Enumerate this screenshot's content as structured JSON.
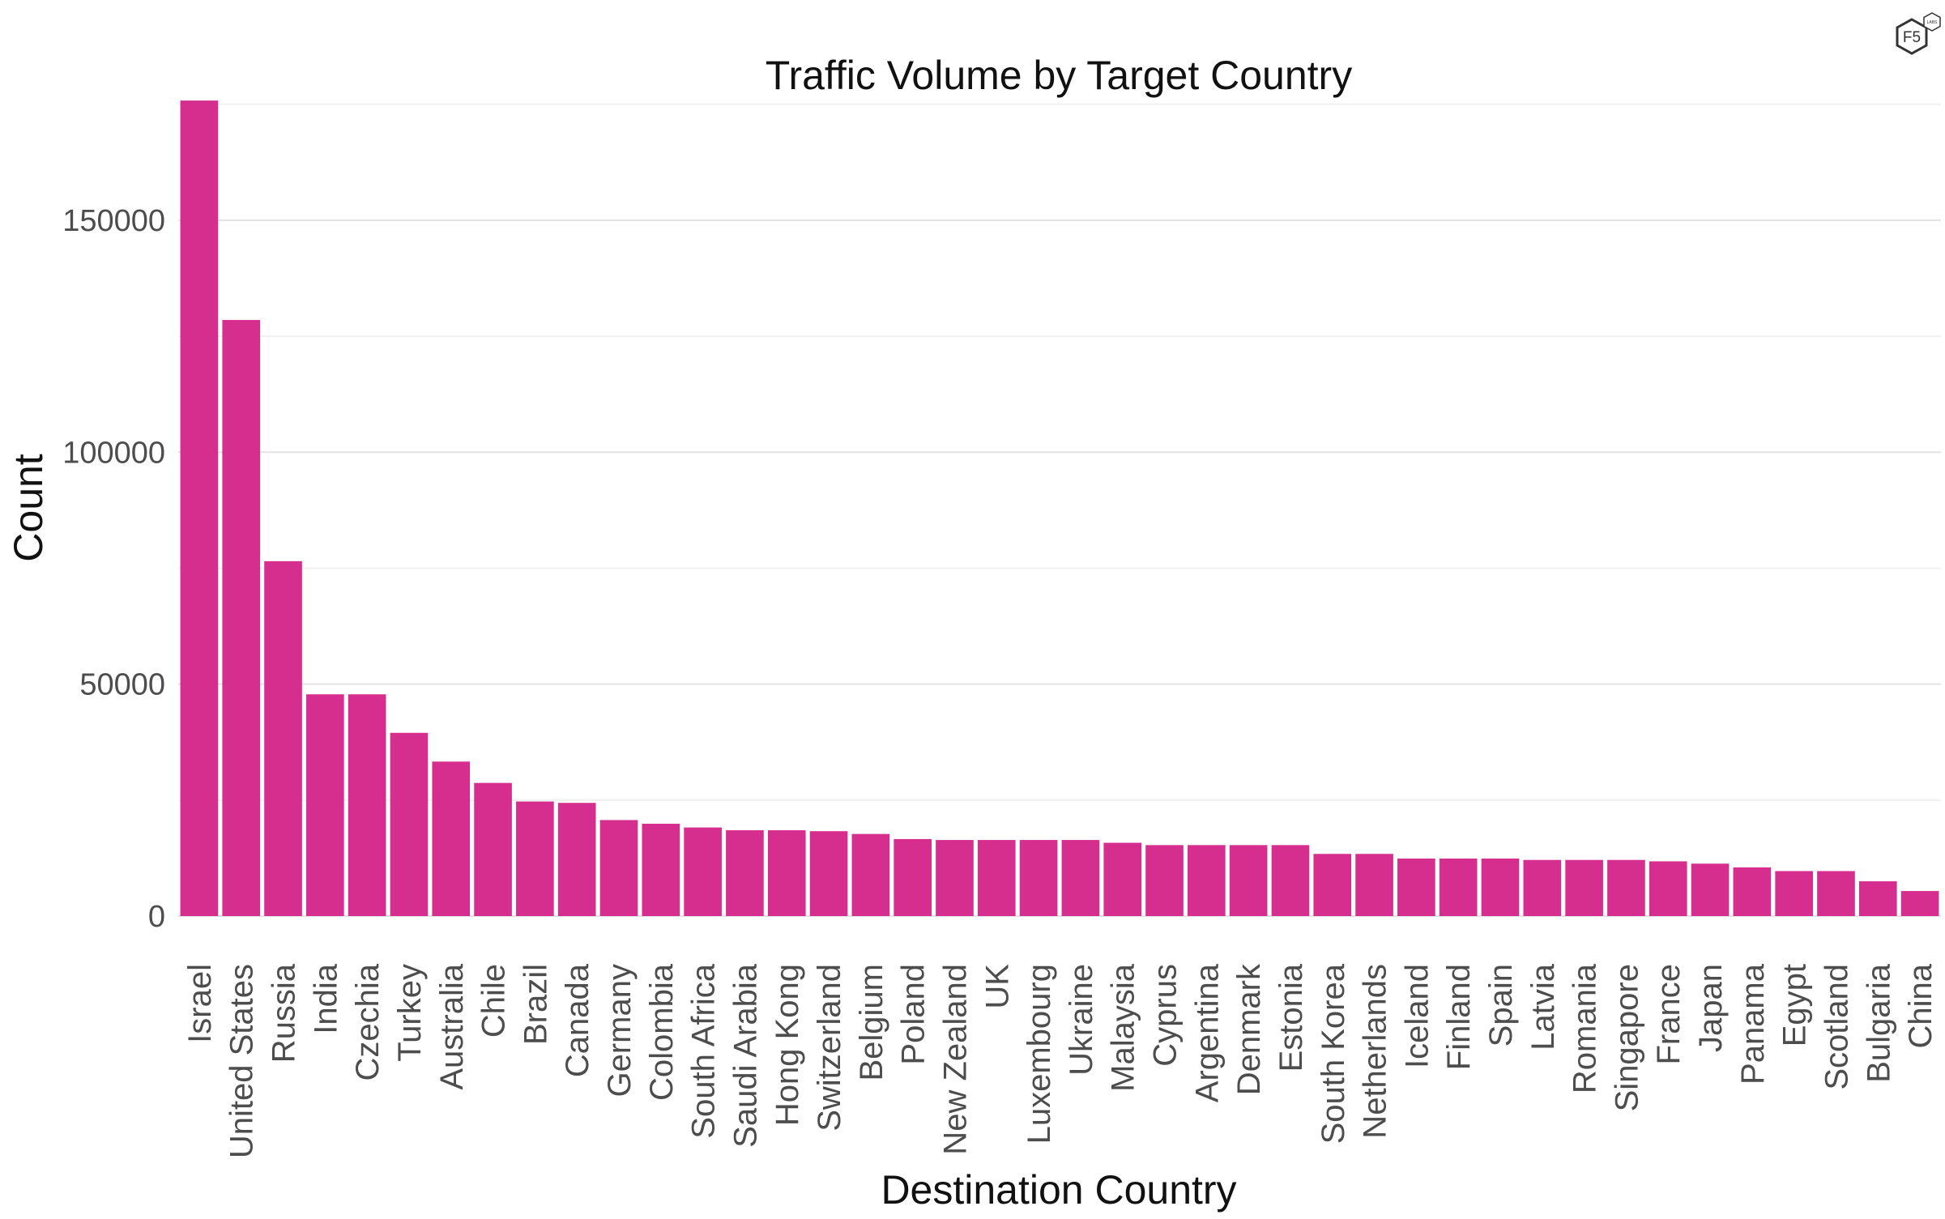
{
  "logo": {
    "text": "F5",
    "subtext": "LABS"
  },
  "chart_data": {
    "type": "bar",
    "title": "Traffic Volume by Target Country",
    "xlabel": "Destination Country",
    "ylabel": "Count",
    "ylim": [
      0,
      176000
    ],
    "yticks": [
      0,
      50000,
      100000,
      150000
    ],
    "ytick_labels": [
      "0",
      "50000",
      "100000",
      "150000"
    ],
    "minor_gridlines": [
      25000,
      75000,
      125000,
      175000
    ],
    "grid": true,
    "bar_color": "#D62E8E",
    "categories": [
      "Israel",
      "United States",
      "Russia",
      "India",
      "Czechia",
      "Turkey",
      "Australia",
      "Chile",
      "Brazil",
      "Canada",
      "Germany",
      "Colombia",
      "South Africa",
      "Saudi Arabia",
      "Hong Kong",
      "Switzerland",
      "Belgium",
      "Poland",
      "New Zealand",
      "UK",
      "Luxembourg",
      "Ukraine",
      "Malaysia",
      "Cyprus",
      "Argentina",
      "Denmark",
      "Estonia",
      "South Korea",
      "Netherlands",
      "Iceland",
      "Finland",
      "Spain",
      "Latvia",
      "Romania",
      "Singapore",
      "France",
      "Japan",
      "Panama",
      "Egypt",
      "Scotland",
      "Bulgaria",
      "China"
    ],
    "values": [
      175800,
      128500,
      76500,
      47800,
      47800,
      39500,
      33300,
      28700,
      24700,
      24400,
      20700,
      19900,
      19100,
      18500,
      18500,
      18300,
      17700,
      16600,
      16400,
      16400,
      16400,
      16400,
      15800,
      15300,
      15300,
      15300,
      15300,
      13400,
      13400,
      12400,
      12400,
      12400,
      12100,
      12100,
      12100,
      11800,
      11300,
      10500,
      9700,
      9700,
      7500,
      5400
    ]
  }
}
